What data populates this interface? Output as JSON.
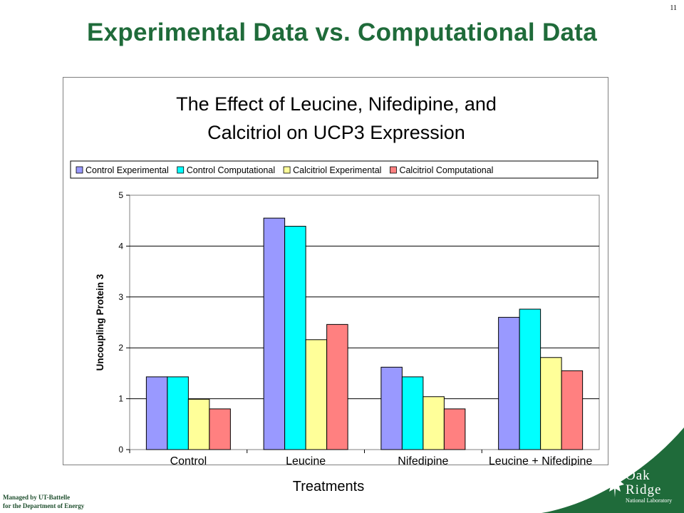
{
  "slide": {
    "title": "Experimental Data vs. Computational Data",
    "page_number": "11",
    "footer_line1": "Managed by UT-Battelle",
    "footer_line2": "for the Department of Energy",
    "logo_line1": "Oak",
    "logo_line2": "Ridge",
    "logo_sub": "National Laboratory",
    "brand_green": "#1f6b3a"
  },
  "chart_data": {
    "type": "bar",
    "title_line1": "The Effect of Leucine, Nifedipine, and",
    "title_line2": "Calcitriol on UCP3 Expression",
    "xlabel": "Treatments",
    "ylabel": "Uncoupling Protein 3",
    "ylim": [
      0,
      5
    ],
    "yticks": [
      0,
      1,
      2,
      3,
      4,
      5
    ],
    "grid": true,
    "legend_position": "top",
    "categories": [
      "Control",
      "Leucine",
      "Nifedipine",
      "Leucine + Nifedipine"
    ],
    "series": [
      {
        "name": "Control Experimental",
        "color": "#9999ff",
        "values": [
          1.43,
          4.55,
          1.62,
          2.6
        ]
      },
      {
        "name": "Control Computational",
        "color": "#00ffff",
        "values": [
          1.43,
          4.39,
          1.43,
          2.76
        ]
      },
      {
        "name": "Calcitriol Experimental",
        "color": "#ffff99",
        "values": [
          0.99,
          2.16,
          1.04,
          1.81
        ]
      },
      {
        "name": "Calcitriol Computational",
        "color": "#ff8080",
        "values": [
          0.8,
          2.46,
          0.8,
          1.55
        ]
      }
    ]
  }
}
